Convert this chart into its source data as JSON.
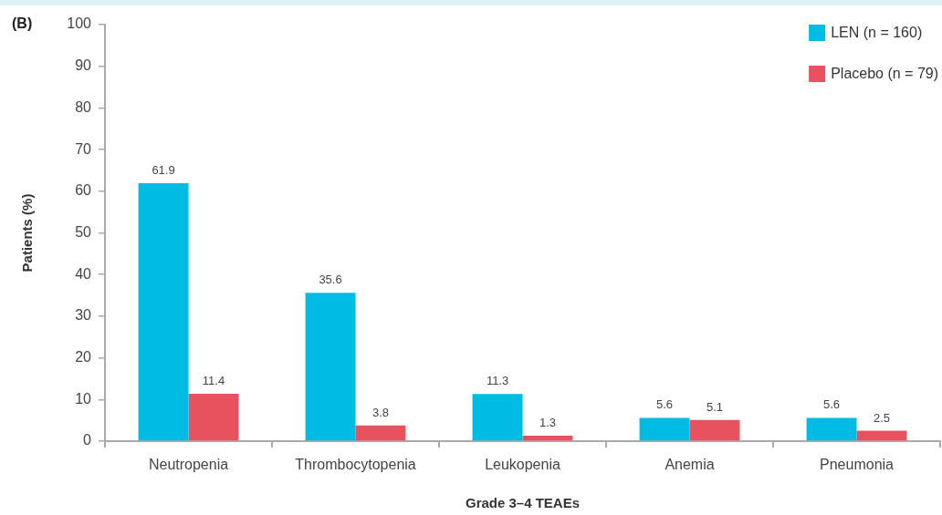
{
  "chart_data": {
    "type": "bar",
    "annotations": [
      "(B)"
    ],
    "xlabel": "Grade 3–4 TEAEs",
    "ylabel": "Patients (%)",
    "categories": [
      "Neutropenia",
      "Thrombocytopenia",
      "Leukopenia",
      "Anemia",
      "Pneumonia"
    ],
    "series": [
      {
        "name": "LEN (n = 160)",
        "color": "#00bce4",
        "values": [
          61.9,
          35.6,
          11.3,
          5.6,
          5.6
        ]
      },
      {
        "name": "Placebo (n = 79)",
        "color": "#e8525e",
        "values": [
          11.4,
          3.8,
          1.3,
          5.1,
          2.5
        ]
      }
    ],
    "ylim": [
      0,
      100
    ],
    "yticks": [
      0,
      10,
      20,
      30,
      40,
      50,
      60,
      70,
      80,
      90,
      100
    ],
    "legend": "top right",
    "data_labels": true
  }
}
